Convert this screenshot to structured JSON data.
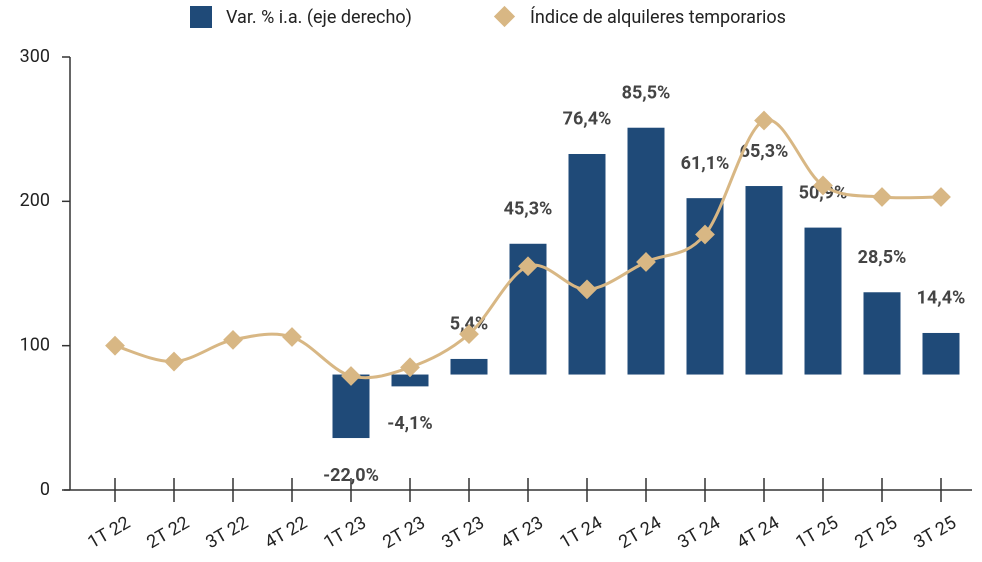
{
  "chart_data": {
    "type": "bar-line",
    "categories": [
      "1T 22",
      "2T 22",
      "3T 22",
      "4T 22",
      "1T 23",
      "2T 23",
      "3T 23",
      "4T 23",
      "1T 24",
      "2T 24",
      "3T 24",
      "4T 24",
      "1T 25",
      "2T 25",
      "3T 25"
    ],
    "series": [
      {
        "name": "Var. % i.a. (eje derecho)",
        "type": "bar",
        "axis": "y2",
        "color": "#1f4a78",
        "values": [
          null,
          null,
          null,
          null,
          -22.0,
          -4.1,
          5.4,
          45.3,
          76.4,
          85.5,
          61.1,
          65.3,
          50.9,
          28.5,
          14.4
        ],
        "value_labels": [
          null,
          null,
          null,
          null,
          "-22,0%",
          "-4,1%",
          "5,4%",
          "45,3%",
          "76,4%",
          "85,5%",
          "61,1%",
          "65,3%",
          "50,9%",
          "28,5%",
          "14,4%"
        ]
      },
      {
        "name": "Índice de alquileres temporarios",
        "type": "line",
        "color": "#d8b784",
        "values": [
          100,
          89,
          104,
          106,
          79,
          85,
          108,
          155,
          139,
          158,
          177,
          256,
          211,
          203,
          203
        ]
      }
    ],
    "ylim": [
      0,
      300
    ],
    "yticks": [
      0,
      100,
      200,
      300
    ],
    "y2lim": [
      -40,
      110
    ]
  }
}
